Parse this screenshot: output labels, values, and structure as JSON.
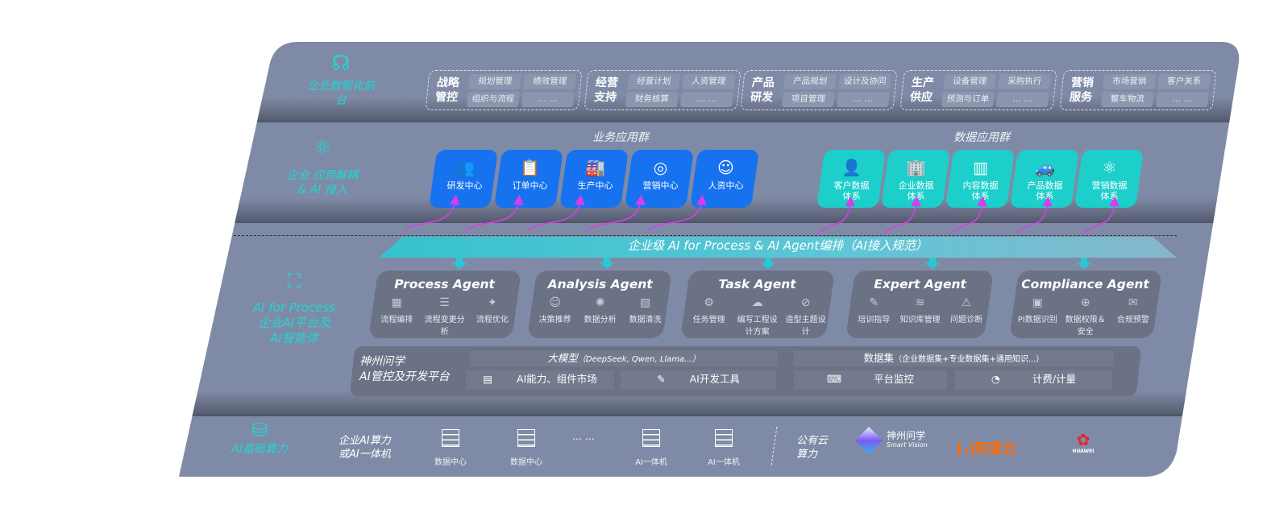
{
  "layers": {
    "front": {
      "label": "企业数智化前台",
      "icon": "brain-icon"
    },
    "apps": {
      "label_line1": "企业 应用解耦",
      "label_line2": "& AI 侵入",
      "icon": "molecule-icon"
    },
    "ai": {
      "label_line1": "AI for Process",
      "label_line2": "企业AI平台及",
      "label_line3": "AI智能体",
      "icon": "face-scan-icon"
    },
    "compute": {
      "label": "AI基础算力",
      "icon": "database-icon"
    }
  },
  "front_groups": [
    {
      "title": "战略管控",
      "items": [
        "规划管理",
        "绩效管理",
        "组织与流程",
        "… …"
      ]
    },
    {
      "title": "经营支持",
      "items": [
        "经营计划",
        "人资管理",
        "财务核算",
        "… …"
      ]
    },
    {
      "title": "产品研发",
      "items": [
        "产品规划",
        "设计及协同",
        "项目管理",
        "… …"
      ]
    },
    {
      "title": "生产供应",
      "items": [
        "设备管理",
        "采购执行",
        "预测与订单",
        "… …"
      ]
    },
    {
      "title": "营销服务",
      "items": [
        "市场营销",
        "客户关系",
        "整车物流",
        "… …"
      ]
    }
  ],
  "business_apps": {
    "title": "业务应用群",
    "items": [
      {
        "label": "研发中心",
        "icon": "users-icon"
      },
      {
        "label": "订单中心",
        "icon": "clipboard-icon"
      },
      {
        "label": "生产中心",
        "icon": "factory-icon"
      },
      {
        "label": "营销中心",
        "icon": "target-icon"
      },
      {
        "label": "人资中心",
        "icon": "person-icon"
      }
    ]
  },
  "data_apps": {
    "title": "数据应用群",
    "items": [
      {
        "label": "客户数据体系",
        "icon": "user-icon"
      },
      {
        "label": "企业数据体系",
        "icon": "building-icon"
      },
      {
        "label": "内容数据体系",
        "icon": "books-icon"
      },
      {
        "label": "产品数据体系",
        "icon": "car-icon"
      },
      {
        "label": "营销数据体系",
        "icon": "atom-icon"
      }
    ]
  },
  "banner": "企业级 AI for Process & AI Agent编排（AI接入规范）",
  "agents": [
    {
      "name": "Process Agent",
      "items": [
        "流程编排",
        "流程变更分析",
        "流程优化"
      ]
    },
    {
      "name": "Analysis Agent",
      "items": [
        "决策推荐",
        "数据分析",
        "数据清洗"
      ]
    },
    {
      "name": "Task Agent",
      "items": [
        "任务管理",
        "编写工程设计方案",
        "造型主题设计"
      ]
    },
    {
      "name": "Expert Agent",
      "items": [
        "培训指导",
        "知识库管理",
        "问题诊断"
      ]
    },
    {
      "name": "Compliance Agent",
      "items": [
        "PI数据识别",
        "数据权限＆安全",
        "合规预警"
      ]
    }
  ],
  "platform": {
    "name_line1": "神州问学",
    "name_line2": "AI管控及开发平台",
    "llm": {
      "title": "大模型",
      "note": "（DeepSeek, Qwen, Llama...）"
    },
    "dataset": {
      "title": "数据集",
      "note": "（企业数据集+专业数据集+通用知识...）"
    },
    "tools": [
      "AI能力、组件市场",
      "AI开发工具",
      "平台监控",
      "计费/计量"
    ]
  },
  "compute": {
    "private_line1": "企业AI算力",
    "private_line2": "或AI一体机",
    "servers": [
      "数据中心",
      "数据中心",
      "AI一体机",
      "AI一体机"
    ],
    "ellipsis": "… …",
    "public_line1": "公有云",
    "public_line2": "算力",
    "vendors": {
      "smartvision_cn": "神州问学",
      "smartvision_en": "Smart Vision",
      "aliyun": "阿里云",
      "huawei": "HUAWEI"
    }
  },
  "colors": {
    "panel": "#7f8ba6",
    "accent_cyan": "#20d6d6",
    "business_blue": "#1672ef",
    "data_teal": "#1ccfcb",
    "arrow_magenta": "#d83ee8",
    "aliyun": "#ff6a00",
    "huawei": "#e3262a"
  }
}
